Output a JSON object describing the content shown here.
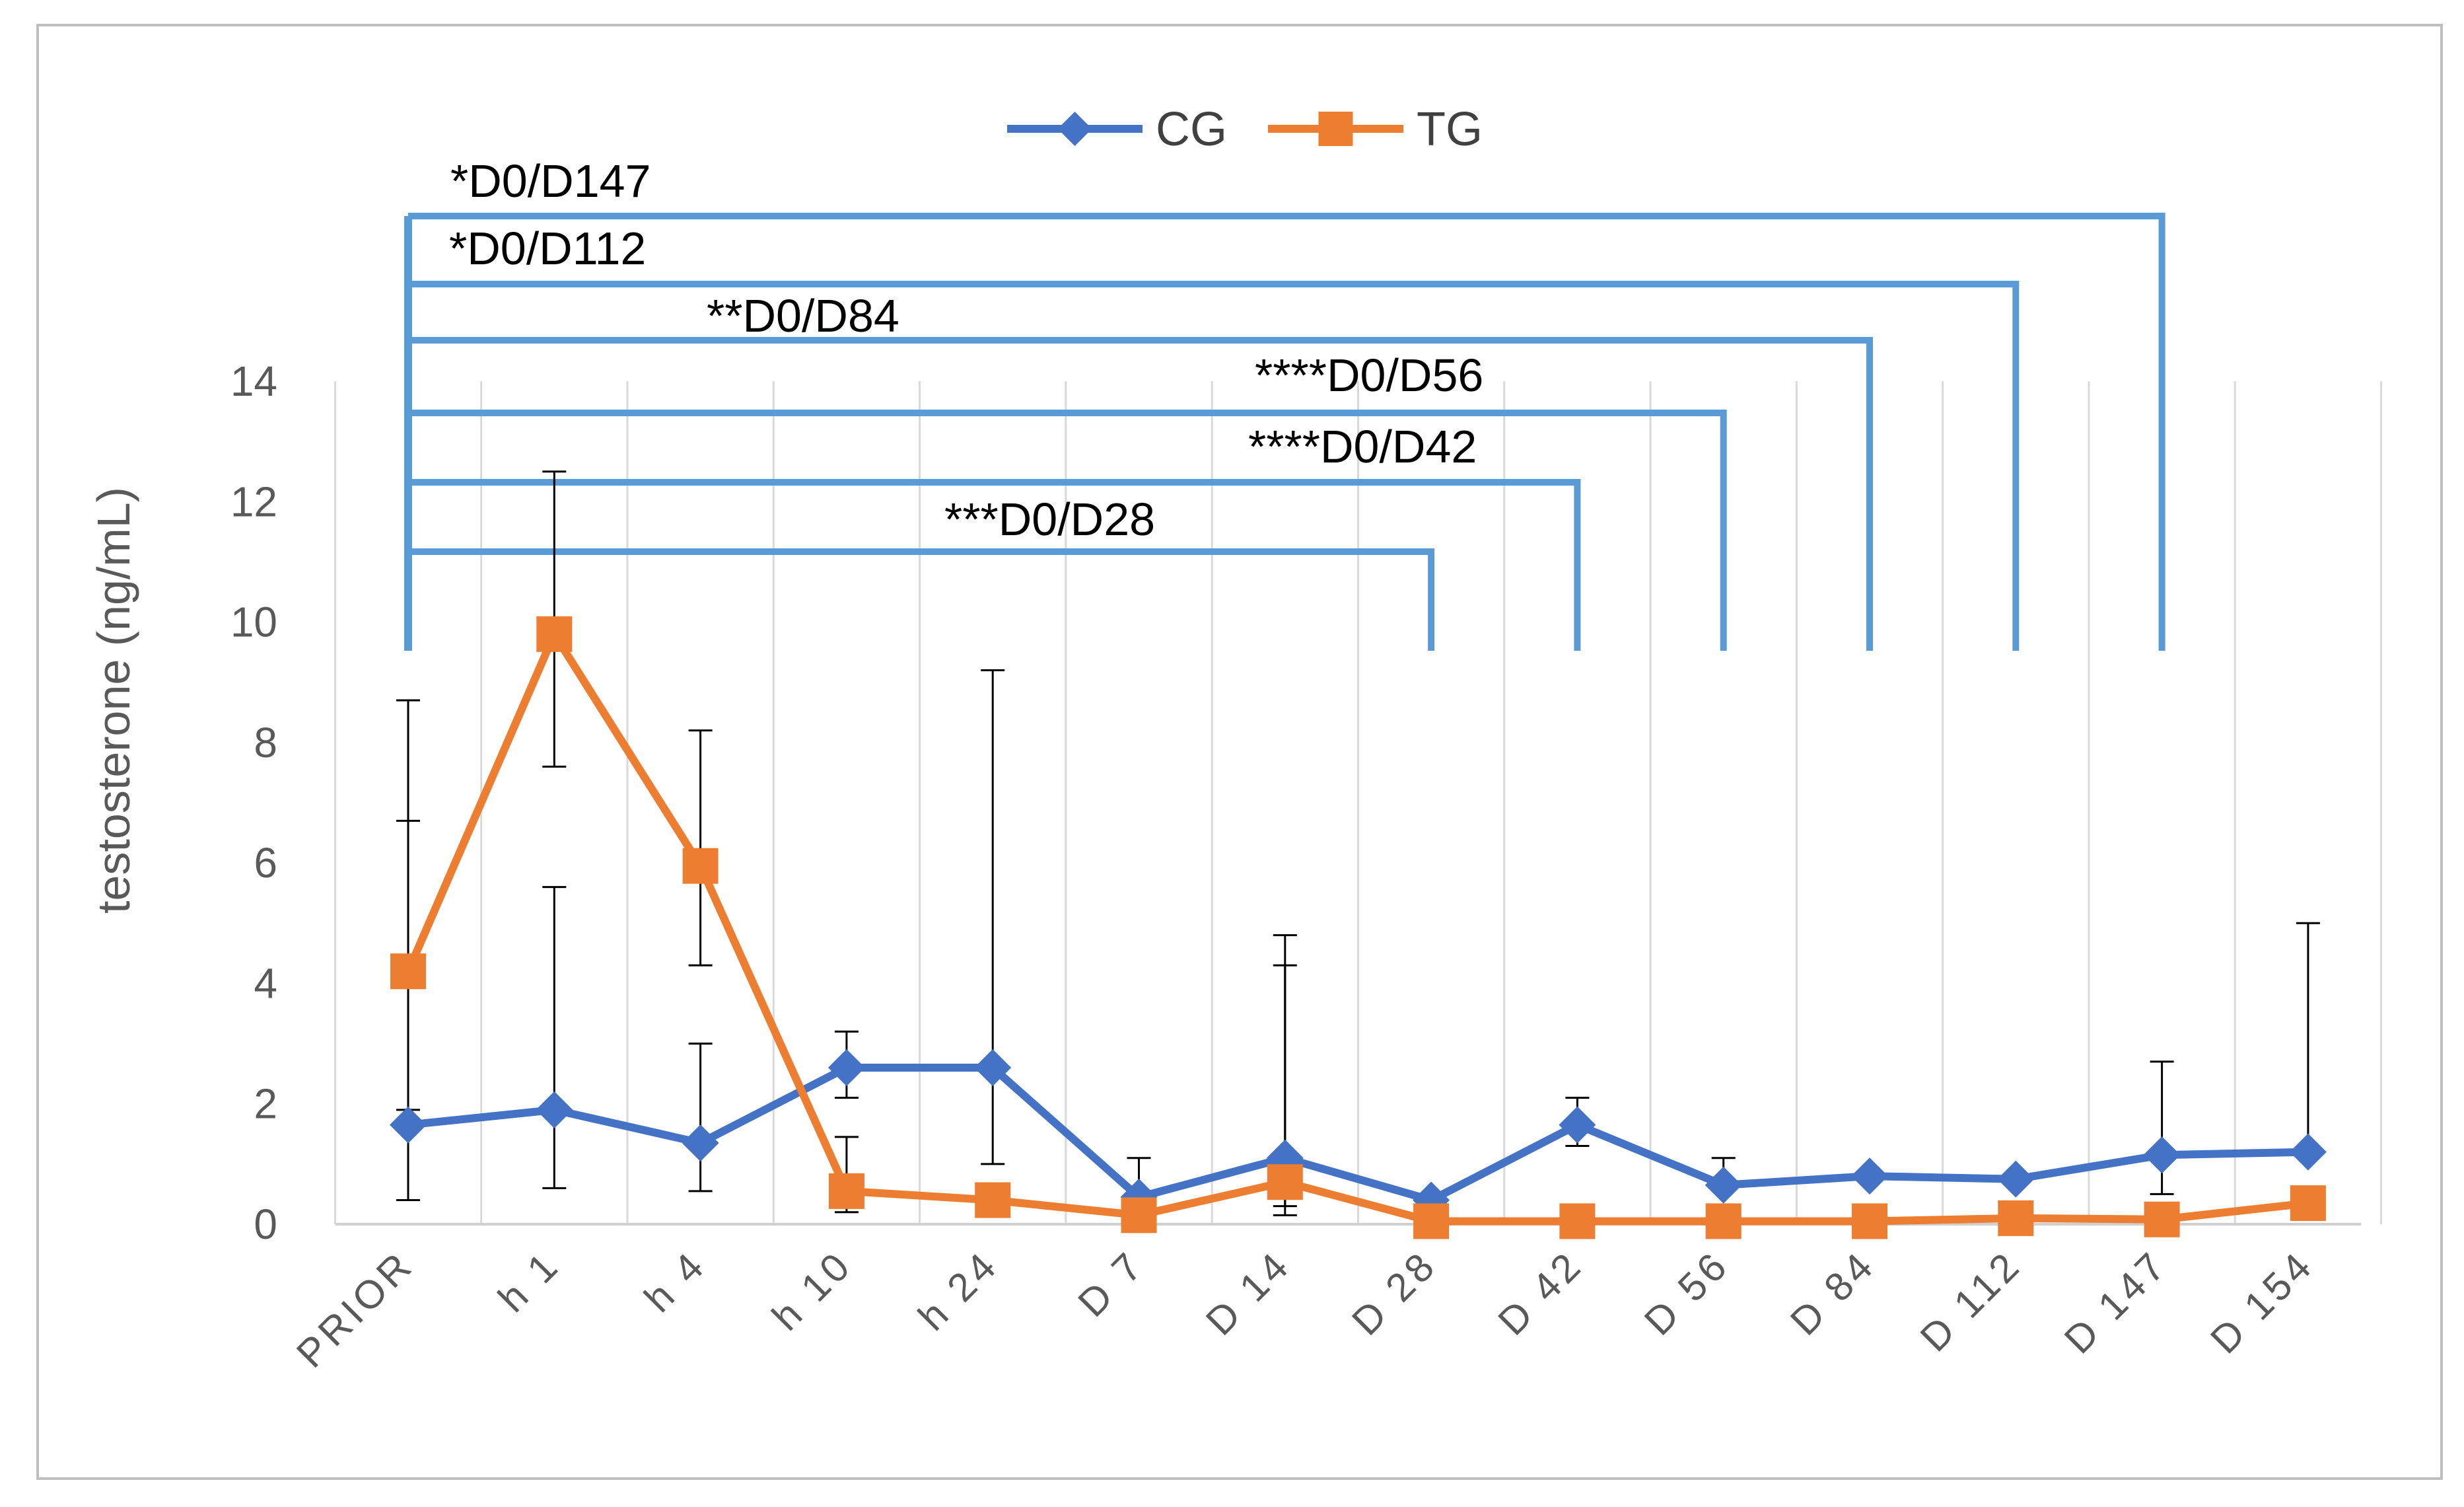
{
  "chart_data": {
    "type": "line",
    "title": "",
    "xlabel": "",
    "ylabel": "testosterone (ng/mL)",
    "ylim": [
      0,
      14
    ],
    "yticks": [
      0,
      2,
      4,
      6,
      8,
      10,
      12,
      14
    ],
    "grid": "vertical",
    "legend_position": "top-center",
    "categories": [
      "PRIOR",
      "h 1",
      "h 4",
      "h 10",
      "h 24",
      "D 7",
      "D 14",
      "D 28",
      "D 42",
      "D 56",
      "D 84",
      "D 112",
      "D 147",
      "D 154"
    ],
    "series": [
      {
        "name": "CG",
        "color": "#4472C4",
        "marker": "diamond",
        "values": [
          1.65,
          1.9,
          1.35,
          2.6,
          2.6,
          0.45,
          1.1,
          0.4,
          1.65,
          0.65,
          0.8,
          0.75,
          1.15,
          1.2
        ],
        "err_upper": [
          8.7,
          5.6,
          3.0,
          3.2,
          9.2,
          1.1,
          4.3,
          0.5,
          2.1,
          1.1,
          0.8,
          0.75,
          2.7,
          5.0
        ],
        "err_lower": [
          0.4,
          0.6,
          0.55,
          2.1,
          1.0,
          0.45,
          0.3,
          0.4,
          1.3,
          0.65,
          0.8,
          0.75,
          0.5,
          1.2
        ]
      },
      {
        "name": "TG",
        "color": "#ED7D31",
        "marker": "square",
        "values": [
          4.2,
          9.8,
          5.95,
          0.55,
          0.4,
          0.15,
          0.7,
          0.05,
          0.05,
          0.05,
          0.05,
          0.1,
          0.08,
          0.35
        ],
        "err_upper": [
          6.7,
          12.5,
          8.2,
          1.45,
          0.4,
          0.15,
          4.8,
          0.05,
          0.05,
          0.05,
          0.05,
          0.1,
          0.08,
          0.35
        ],
        "err_lower": [
          1.9,
          7.6,
          4.3,
          0.2,
          0.4,
          0.15,
          0.15,
          0.05,
          0.05,
          0.05,
          0.05,
          0.1,
          0.08,
          0.35
        ]
      }
    ],
    "brackets": [
      {
        "label": "***D0/D28",
        "from": "PRIOR",
        "to": "D 28"
      },
      {
        "label": "****D0/D42",
        "from": "PRIOR",
        "to": "D 42"
      },
      {
        "label": "****D0/D56",
        "from": "PRIOR",
        "to": "D 56"
      },
      {
        "label": "**D0/D84",
        "from": "PRIOR",
        "to": "D 84"
      },
      {
        "label": "*D0/D112",
        "from": "PRIOR",
        "to": "D 112"
      },
      {
        "label": "*D0/D147",
        "from": "PRIOR",
        "to": "D 147"
      }
    ],
    "bracket_color": "#5B9BD5"
  }
}
